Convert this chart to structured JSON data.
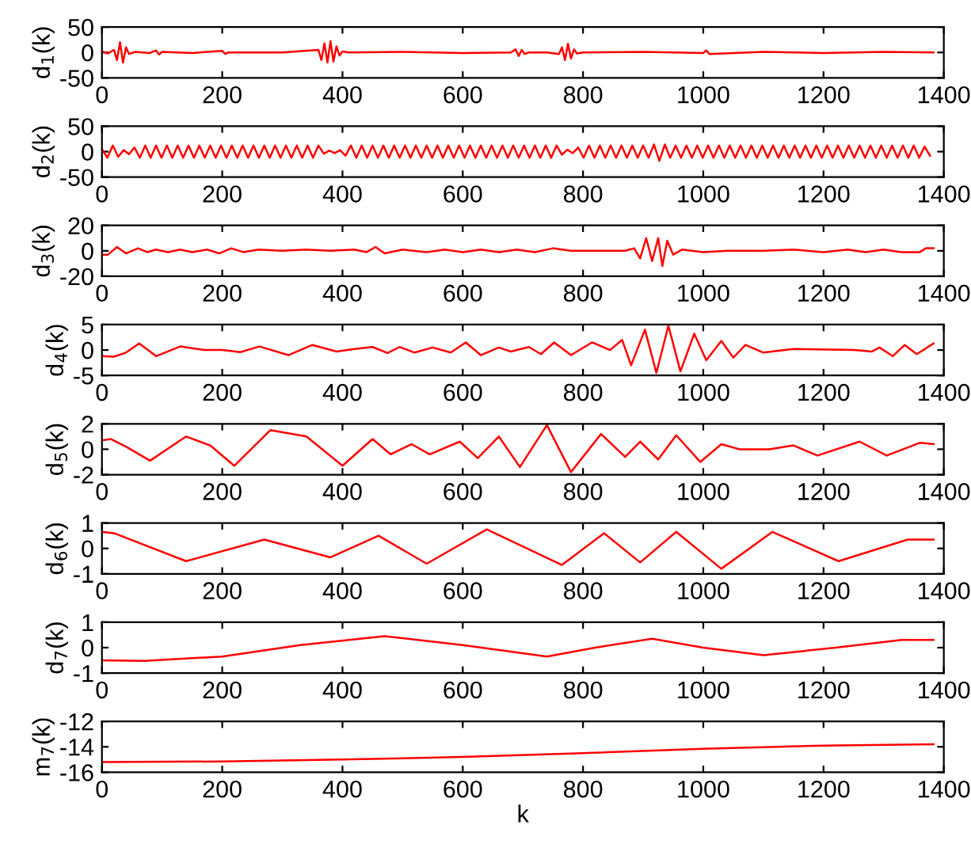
{
  "chart_data": [
    {
      "type": "line",
      "ylabel": "d$_{1}$(k)",
      "color": "#ff0000",
      "xlim": [
        0,
        1400
      ],
      "xticks": [
        0,
        200,
        400,
        600,
        800,
        1000,
        1200,
        1400
      ],
      "ylim": [
        -50,
        50
      ],
      "yticks": [
        -50,
        0,
        50
      ],
      "x": [
        0,
        10,
        20,
        25,
        30,
        35,
        40,
        45,
        55,
        80,
        90,
        95,
        100,
        150,
        200,
        205,
        210,
        300,
        360,
        365,
        370,
        375,
        380,
        385,
        390,
        395,
        400,
        410,
        500,
        600,
        680,
        688,
        693,
        698,
        703,
        710,
        740,
        760,
        765,
        770,
        775,
        780,
        785,
        790,
        800,
        900,
        1000,
        1005,
        1010,
        1100,
        1200,
        1300,
        1383
      ],
      "values": [
        2,
        -2,
        5,
        -15,
        20,
        -20,
        10,
        -3,
        1,
        -1,
        4,
        -4,
        1,
        -1,
        3,
        -3,
        0,
        0,
        5,
        -15,
        18,
        -20,
        22,
        -18,
        12,
        -6,
        2,
        0,
        1,
        -1,
        0,
        6,
        -7,
        5,
        -3,
        0,
        0,
        -3,
        10,
        -15,
        17,
        -12,
        6,
        -2,
        0,
        1,
        -1,
        4,
        -3,
        1,
        -1,
        1,
        0
      ]
    },
    {
      "type": "line",
      "ylabel": "d$_{2}$(k)",
      "color": "#ff0000",
      "xlim": [
        0,
        1400
      ],
      "xticks": [
        0,
        200,
        400,
        600,
        800,
        1000,
        1200,
        1400
      ],
      "ylim": [
        -50,
        50
      ],
      "yticks": [
        -50,
        0,
        50
      ],
      "x": [
        0,
        9,
        18,
        27,
        36,
        45,
        54,
        63,
        72,
        81,
        90,
        99,
        108,
        117,
        126,
        135,
        144,
        153,
        162,
        171,
        180,
        189,
        198,
        207,
        216,
        225,
        234,
        243,
        252,
        261,
        270,
        279,
        288,
        297,
        306,
        315,
        324,
        333,
        342,
        351,
        360,
        369,
        378,
        387,
        396,
        405,
        414,
        423,
        432,
        441,
        450,
        459,
        468,
        477,
        486,
        495,
        504,
        513,
        522,
        531,
        540,
        549,
        558,
        567,
        576,
        585,
        594,
        603,
        612,
        621,
        630,
        639,
        648,
        657,
        666,
        675,
        684,
        693,
        702,
        711,
        720,
        729,
        738,
        747,
        756,
        765,
        774,
        783,
        792,
        801,
        810,
        819,
        828,
        837,
        846,
        855,
        864,
        873,
        882,
        891,
        900,
        909,
        918,
        927,
        936,
        945,
        954,
        963,
        972,
        981,
        990,
        999,
        1008,
        1017,
        1026,
        1035,
        1044,
        1053,
        1062,
        1071,
        1080,
        1089,
        1098,
        1107,
        1116,
        1125,
        1134,
        1143,
        1152,
        1161,
        1170,
        1179,
        1188,
        1197,
        1206,
        1215,
        1224,
        1233,
        1242,
        1251,
        1260,
        1269,
        1278,
        1287,
        1296,
        1305,
        1314,
        1323,
        1332,
        1341,
        1350,
        1359,
        1368,
        1377
      ],
      "values": [
        5,
        -12,
        12,
        -10,
        3,
        -5,
        8,
        -12,
        12,
        -12,
        12,
        -12,
        12,
        -12,
        12,
        -12,
        12,
        -12,
        12,
        -12,
        12,
        -12,
        12,
        -12,
        12,
        -12,
        12,
        -12,
        12,
        -12,
        12,
        -12,
        12,
        -12,
        12,
        -12,
        12,
        -12,
        12,
        -12,
        12,
        -4,
        2,
        -3,
        3,
        -8,
        12,
        -12,
        12,
        -12,
        12,
        -12,
        12,
        -12,
        12,
        -12,
        12,
        -12,
        12,
        -12,
        12,
        -12,
        12,
        -12,
        12,
        -12,
        12,
        -12,
        12,
        -12,
        12,
        -12,
        12,
        -12,
        12,
        -12,
        12,
        -12,
        12,
        -12,
        12,
        -12,
        12,
        -12,
        12,
        -6,
        4,
        -3,
        8,
        -12,
        12,
        -12,
        12,
        -12,
        12,
        -12,
        12,
        -12,
        12,
        -12,
        12,
        -12,
        14,
        -18,
        14,
        -12,
        12,
        -12,
        12,
        -12,
        12,
        -12,
        12,
        -12,
        12,
        -12,
        12,
        -12,
        12,
        -12,
        12,
        -12,
        12,
        -12,
        12,
        -12,
        12,
        -12,
        12,
        -12,
        12,
        -12,
        12,
        -12,
        12,
        -12,
        12,
        -12,
        12,
        -12,
        12,
        -12,
        12,
        -12,
        12,
        -12,
        12,
        -12,
        12,
        -12,
        12,
        -12,
        10,
        -8
      ]
    },
    {
      "type": "line",
      "ylabel": "d$_{3}$(k)",
      "color": "#ff0000",
      "xlim": [
        0,
        1400
      ],
      "xticks": [
        0,
        200,
        400,
        600,
        800,
        1000,
        1200,
        1400
      ],
      "ylim": [
        -20,
        20
      ],
      "yticks": [
        -20,
        0,
        20
      ],
      "x": [
        0,
        10,
        25,
        40,
        60,
        75,
        90,
        110,
        130,
        150,
        175,
        195,
        215,
        235,
        260,
        300,
        340,
        380,
        420,
        440,
        455,
        470,
        500,
        540,
        570,
        600,
        630,
        660,
        690,
        720,
        750,
        780,
        820,
        870,
        885,
        895,
        905,
        915,
        925,
        932,
        940,
        950,
        965,
        1000,
        1040,
        1100,
        1150,
        1200,
        1240,
        1270,
        1300,
        1330,
        1360,
        1370,
        1383
      ],
      "values": [
        -3,
        -3,
        3,
        -2,
        2,
        -1,
        1,
        -1,
        1,
        -1,
        1,
        -2,
        2,
        -1,
        1,
        0,
        1,
        0,
        1,
        -1,
        3,
        -2,
        1,
        -1,
        1,
        -1,
        1,
        -1,
        1,
        -1,
        2,
        0,
        0,
        0,
        2,
        -6,
        10,
        -8,
        10,
        -12,
        8,
        -3,
        1,
        -1,
        0,
        0,
        1,
        -1,
        1,
        -1,
        1,
        -1,
        -1,
        2,
        2
      ]
    },
    {
      "type": "line",
      "ylabel": "d$_{4}$(k)",
      "color": "#ff0000",
      "xlim": [
        0,
        1400
      ],
      "xticks": [
        0,
        200,
        400,
        600,
        800,
        1000,
        1200,
        1400
      ],
      "ylim": [
        -5,
        5
      ],
      "yticks": [
        -5,
        0,
        5
      ],
      "x": [
        0,
        20,
        40,
        62,
        90,
        130,
        170,
        200,
        230,
        262,
        310,
        350,
        390,
        420,
        450,
        475,
        495,
        520,
        550,
        580,
        605,
        630,
        660,
        680,
        710,
        730,
        752,
        780,
        815,
        845,
        865,
        880,
        903,
        922,
        942,
        962,
        985,
        1005,
        1030,
        1050,
        1070,
        1100,
        1150,
        1250,
        1280,
        1293,
        1315,
        1335,
        1355,
        1383
      ],
      "values": [
        -1.2,
        -1.3,
        -0.5,
        1.3,
        -1.2,
        0.7,
        0,
        0,
        -0.4,
        0.7,
        -1,
        1,
        -0.3,
        0.2,
        0.6,
        -0.6,
        0.6,
        -0.5,
        0.5,
        -0.5,
        1.5,
        -1,
        0.5,
        -0.3,
        0.6,
        -0.8,
        1.5,
        -1,
        1.5,
        0,
        2,
        -3,
        4,
        -4.5,
        4.8,
        -4.2,
        3.2,
        -2,
        1.8,
        -1.5,
        1,
        -0.5,
        0.2,
        0,
        -0.3,
        0.5,
        -1.2,
        1,
        -0.8,
        1.3
      ]
    },
    {
      "type": "line",
      "ylabel": "d$_{5}$(k)",
      "color": "#ff0000",
      "xlim": [
        0,
        1400
      ],
      "xticks": [
        0,
        200,
        400,
        600,
        800,
        1000,
        1200,
        1400
      ],
      "ylim": [
        -2,
        2
      ],
      "yticks": [
        -2,
        0,
        2
      ],
      "x": [
        0,
        15,
        40,
        80,
        140,
        180,
        220,
        280,
        340,
        400,
        450,
        480,
        515,
        545,
        595,
        625,
        660,
        695,
        740,
        780,
        830,
        870,
        895,
        925,
        955,
        995,
        1030,
        1060,
        1110,
        1150,
        1190,
        1260,
        1305,
        1360,
        1383
      ],
      "values": [
        0.7,
        0.8,
        0.2,
        -0.9,
        1,
        0.3,
        -1.3,
        1.5,
        1,
        -1.3,
        0.8,
        -0.4,
        0.4,
        -0.4,
        0.6,
        -0.7,
        1,
        -1.4,
        1.9,
        -1.8,
        1.2,
        -0.6,
        0.6,
        -0.8,
        1.1,
        -1,
        0.4,
        0,
        0,
        0.3,
        -0.5,
        0.6,
        -0.5,
        0.5,
        0.4
      ]
    },
    {
      "type": "line",
      "ylabel": "d$_{6}$(k)",
      "color": "#ff0000",
      "xlim": [
        0,
        1400
      ],
      "xticks": [
        0,
        200,
        400,
        600,
        800,
        1000,
        1200,
        1400
      ],
      "ylim": [
        -1,
        1
      ],
      "yticks": [
        -1,
        0,
        1
      ],
      "x": [
        0,
        20,
        140,
        270,
        380,
        460,
        540,
        640,
        765,
        835,
        895,
        955,
        1030,
        1115,
        1225,
        1340,
        1383
      ],
      "values": [
        0.65,
        0.6,
        -0.5,
        0.35,
        -0.35,
        0.5,
        -0.6,
        0.75,
        -0.65,
        0.6,
        -0.55,
        0.65,
        -0.8,
        0.65,
        -0.5,
        0.35,
        0.35
      ]
    },
    {
      "type": "line",
      "ylabel": "d$_{7}$(k)",
      "color": "#ff0000",
      "xlim": [
        0,
        1400
      ],
      "xticks": [
        0,
        200,
        400,
        600,
        800,
        1000,
        1200,
        1400
      ],
      "ylim": [
        -1,
        1
      ],
      "yticks": [
        -1,
        0,
        1
      ],
      "x": [
        0,
        70,
        200,
        330,
        470,
        600,
        740,
        820,
        915,
        1000,
        1100,
        1220,
        1330,
        1383
      ],
      "values": [
        -0.5,
        -0.52,
        -0.35,
        0.1,
        0.45,
        0.1,
        -0.35,
        0,
        0.35,
        0,
        -0.3,
        0,
        0.3,
        0.3
      ]
    },
    {
      "type": "line",
      "ylabel": "m$_{7}$(k)",
      "xlabel": "k",
      "color": "#ff0000",
      "xlim": [
        0,
        1400
      ],
      "xticks": [
        0,
        200,
        400,
        600,
        800,
        1000,
        1200,
        1400
      ],
      "ylim": [
        -16,
        -12
      ],
      "yticks": [
        -16,
        -14,
        -12
      ],
      "x": [
        0,
        200,
        400,
        600,
        800,
        1000,
        1200,
        1383
      ],
      "values": [
        -15.2,
        -15.15,
        -15.0,
        -14.8,
        -14.5,
        -14.15,
        -13.9,
        -13.8
      ]
    }
  ]
}
